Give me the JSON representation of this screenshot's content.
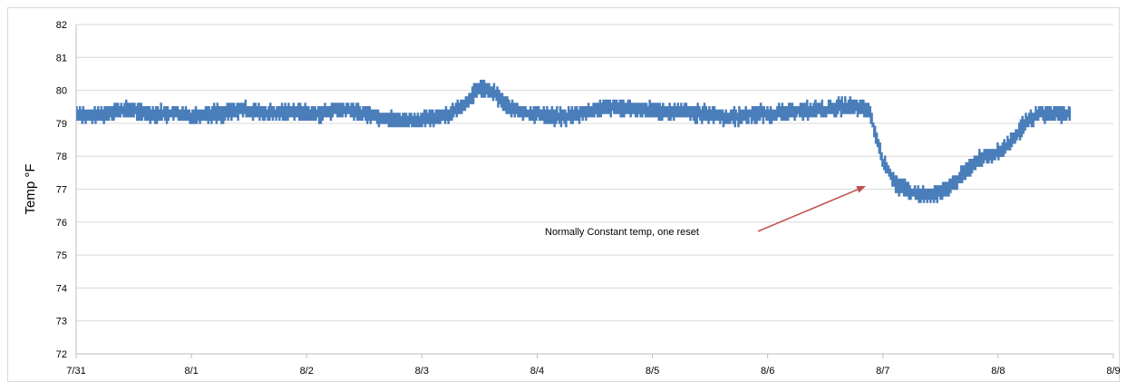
{
  "chart_data": {
    "type": "line",
    "title": "",
    "xlabel": "",
    "ylabel": "Temp °F",
    "ylim": [
      72,
      82
    ],
    "yticks": [
      72,
      73,
      74,
      75,
      76,
      77,
      78,
      79,
      80,
      81,
      82
    ],
    "xlim": [
      "7/31",
      "8/9"
    ],
    "xticks": [
      "7/31",
      "8/1",
      "8/2",
      "8/3",
      "8/4",
      "8/5",
      "8/6",
      "8/7",
      "8/8",
      "8/9"
    ],
    "grid": true,
    "legend": "none",
    "series_color": "#4a7ebb",
    "annotation": {
      "text": "Normally Constant temp, one reset",
      "arrow_color": "#c0504d"
    },
    "series": [
      {
        "x": [
          "7/31 00:00",
          "7/31 03:00",
          "7/31 06:00",
          "7/31 09:00",
          "7/31 12:00",
          "7/31 15:00",
          "7/31 18:00",
          "7/31 21:00",
          "8/1 00:00",
          "8/1 03:00",
          "8/1 06:00",
          "8/1 09:00",
          "8/1 12:00",
          "8/1 15:00",
          "8/1 18:00",
          "8/1 21:00",
          "8/2 00:00",
          "8/2 03:00",
          "8/2 06:00",
          "8/2 09:00",
          "8/2 12:00",
          "8/2 15:00",
          "8/2 18:00",
          "8/2 21:00",
          "8/3 00:00",
          "8/3 03:00",
          "8/3 06:00",
          "8/3 09:00",
          "8/3 12:00",
          "8/3 15:00",
          "8/3 18:00",
          "8/3 21:00",
          "8/4 00:00",
          "8/4 03:00",
          "8/4 06:00",
          "8/4 09:00",
          "8/4 12:00",
          "8/4 15:00",
          "8/4 18:00",
          "8/4 21:00",
          "8/5 00:00",
          "8/5 03:00",
          "8/5 06:00",
          "8/5 09:00",
          "8/5 12:00",
          "8/5 15:00",
          "8/5 18:00",
          "8/5 21:00",
          "8/6 00:00",
          "8/6 03:00",
          "8/6 06:00",
          "8/6 09:00",
          "8/6 12:00",
          "8/6 15:00",
          "8/6 18:00",
          "8/6 21:00",
          "8/7 00:00",
          "8/7 03:00",
          "8/7 06:00",
          "8/7 09:00",
          "8/7 12:00",
          "8/7 15:00",
          "8/7 18:00",
          "8/7 21:00",
          "8/8 00:00",
          "8/8 03:00",
          "8/8 06:00",
          "8/8 09:00",
          "8/8 12:00",
          "8/8 15:00"
        ],
        "values": [
          79.3,
          79.2,
          79.3,
          79.4,
          79.4,
          79.3,
          79.3,
          79.3,
          79.2,
          79.3,
          79.3,
          79.4,
          79.4,
          79.3,
          79.3,
          79.4,
          79.3,
          79.3,
          79.4,
          79.4,
          79.3,
          79.2,
          79.1,
          79.1,
          79.1,
          79.2,
          79.3,
          79.6,
          80.1,
          79.9,
          79.5,
          79.3,
          79.3,
          79.2,
          79.2,
          79.3,
          79.4,
          79.5,
          79.5,
          79.4,
          79.4,
          79.3,
          79.4,
          79.3,
          79.3,
          79.2,
          79.2,
          79.3,
          79.3,
          79.3,
          79.4,
          79.4,
          79.4,
          79.5,
          79.5,
          79.4,
          77.8,
          77.1,
          76.9,
          76.8,
          76.9,
          77.2,
          77.7,
          78.0,
          78.1,
          78.5,
          79.1,
          79.3,
          79.3,
          79.3
        ]
      }
    ]
  }
}
